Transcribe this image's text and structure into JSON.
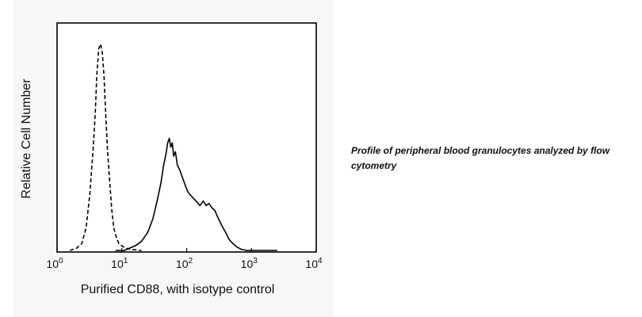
{
  "chart_data": {
    "type": "line",
    "xscale": "log",
    "xlim": [
      1,
      10000
    ],
    "xticks": [
      {
        "value": 1,
        "base": "10",
        "exp": "0"
      },
      {
        "value": 10,
        "base": "10",
        "exp": "1"
      },
      {
        "value": 100,
        "base": "10",
        "exp": "2"
      },
      {
        "value": 1000,
        "base": "10",
        "exp": "3"
      },
      {
        "value": 10000,
        "base": "10",
        "exp": "4"
      }
    ],
    "xlabel": "Purified CD88, with isotype control",
    "ylabel": "Relative Cell Number",
    "ylim": [
      0,
      100
    ],
    "grid": false,
    "series": [
      {
        "style": "dashed",
        "color": "#000000",
        "points": [
          [
            1.58,
            0
          ],
          [
            2.0,
            1
          ],
          [
            2.4,
            3
          ],
          [
            2.8,
            10
          ],
          [
            3.2,
            25
          ],
          [
            3.6,
            45
          ],
          [
            3.9,
            62
          ],
          [
            4.1,
            78
          ],
          [
            4.4,
            90
          ],
          [
            4.7,
            92
          ],
          [
            5.0,
            88
          ],
          [
            5.3,
            78
          ],
          [
            5.6,
            62
          ],
          [
            6.0,
            45
          ],
          [
            6.5,
            30
          ],
          [
            7.0,
            18
          ],
          [
            7.5,
            10
          ],
          [
            8.2,
            6
          ],
          [
            9.0,
            3
          ],
          [
            10.0,
            2
          ],
          [
            11.5,
            1
          ],
          [
            14,
            0.5
          ],
          [
            20,
            0
          ]
        ]
      },
      {
        "style": "solid",
        "color": "#000000",
        "points": [
          [
            8,
            0
          ],
          [
            11,
            0
          ],
          [
            13,
            1
          ],
          [
            16,
            2
          ],
          [
            20,
            4
          ],
          [
            25,
            8
          ],
          [
            30,
            14
          ],
          [
            35,
            22
          ],
          [
            40,
            30
          ],
          [
            44,
            38
          ],
          [
            48,
            43
          ],
          [
            51,
            48
          ],
          [
            54,
            50
          ],
          [
            57,
            46
          ],
          [
            60,
            48
          ],
          [
            63,
            42
          ],
          [
            67,
            44
          ],
          [
            72,
            38
          ],
          [
            78,
            36
          ],
          [
            85,
            33
          ],
          [
            95,
            29
          ],
          [
            105,
            26
          ],
          [
            120,
            24
          ],
          [
            140,
            22
          ],
          [
            160,
            20
          ],
          [
            180,
            22
          ],
          [
            200,
            20
          ],
          [
            220,
            21
          ],
          [
            245,
            19
          ],
          [
            270,
            18
          ],
          [
            300,
            15
          ],
          [
            350,
            11
          ],
          [
            400,
            8
          ],
          [
            450,
            5
          ],
          [
            520,
            3
          ],
          [
            600,
            1.5
          ],
          [
            700,
            0.5
          ],
          [
            850,
            0
          ],
          [
            2500,
            0
          ]
        ]
      }
    ]
  },
  "caption": "Profile of peripheral blood granulocytes analyzed by flow cytometry"
}
